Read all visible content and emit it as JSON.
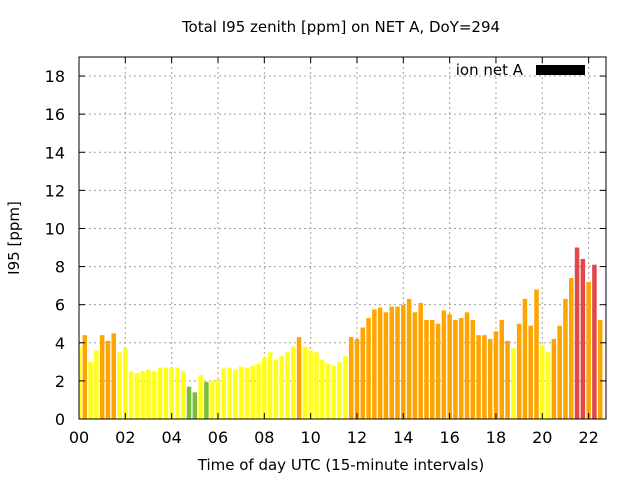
{
  "chart_data": {
    "type": "bar",
    "title": "Total I95 zenith [ppm] on NET A, DoY=294",
    "xlabel": "Time of day UTC (15-minute intervals)",
    "ylabel": "I95 [ppm]",
    "xlim": [
      0,
      22.75
    ],
    "ylim": [
      0,
      19
    ],
    "grid": true,
    "interval_hours": 0.25,
    "x_tick_values": [
      0,
      2,
      4,
      6,
      8,
      10,
      12,
      14,
      16,
      18,
      20,
      22
    ],
    "x_tick_labels": [
      "00",
      "02",
      "04",
      "06",
      "08",
      "10",
      "12",
      "14",
      "16",
      "18",
      "20",
      "22"
    ],
    "y_ticks": [
      0,
      2,
      4,
      6,
      8,
      10,
      12,
      14,
      16,
      18
    ],
    "legend": {
      "label": "ion net A",
      "color": "#000000",
      "position": "top-right"
    },
    "color_classes": [
      {
        "range": "0-2",
        "color": "#79bd3e"
      },
      {
        "range": "2-4",
        "color": "#ffff1a"
      },
      {
        "range": "4-8",
        "color": "#ffa500"
      },
      {
        "range": ">8",
        "color": "#e04848"
      }
    ],
    "series": [
      {
        "name": "ion net A",
        "values": [
          3.8,
          4.4,
          3.0,
          3.6,
          4.4,
          4.1,
          4.5,
          3.5,
          3.7,
          2.5,
          2.4,
          2.5,
          2.6,
          2.5,
          2.7,
          2.7,
          2.7,
          2.7,
          2.5,
          1.7,
          1.4,
          2.3,
          1.95,
          2.0,
          2.1,
          2.65,
          2.7,
          2.6,
          2.75,
          2.7,
          2.8,
          2.9,
          3.2,
          3.5,
          3.1,
          3.3,
          3.5,
          3.8,
          4.3,
          3.8,
          3.6,
          3.5,
          3.1,
          2.9,
          2.8,
          3.0,
          3.3,
          4.3,
          4.2,
          4.8,
          5.3,
          5.75,
          5.85,
          5.6,
          5.9,
          5.9,
          6.0,
          6.3,
          5.6,
          6.1,
          5.2,
          5.2,
          5.0,
          5.7,
          5.5,
          5.2,
          5.3,
          5.6,
          5.2,
          4.4,
          4.4,
          4.2,
          4.6,
          5.2,
          4.1,
          3.7,
          5.0,
          6.3,
          4.9,
          6.8,
          3.9,
          3.5,
          4.2,
          4.9,
          6.3,
          7.4,
          9.0,
          8.4,
          7.2,
          8.1,
          5.2
        ]
      }
    ]
  }
}
